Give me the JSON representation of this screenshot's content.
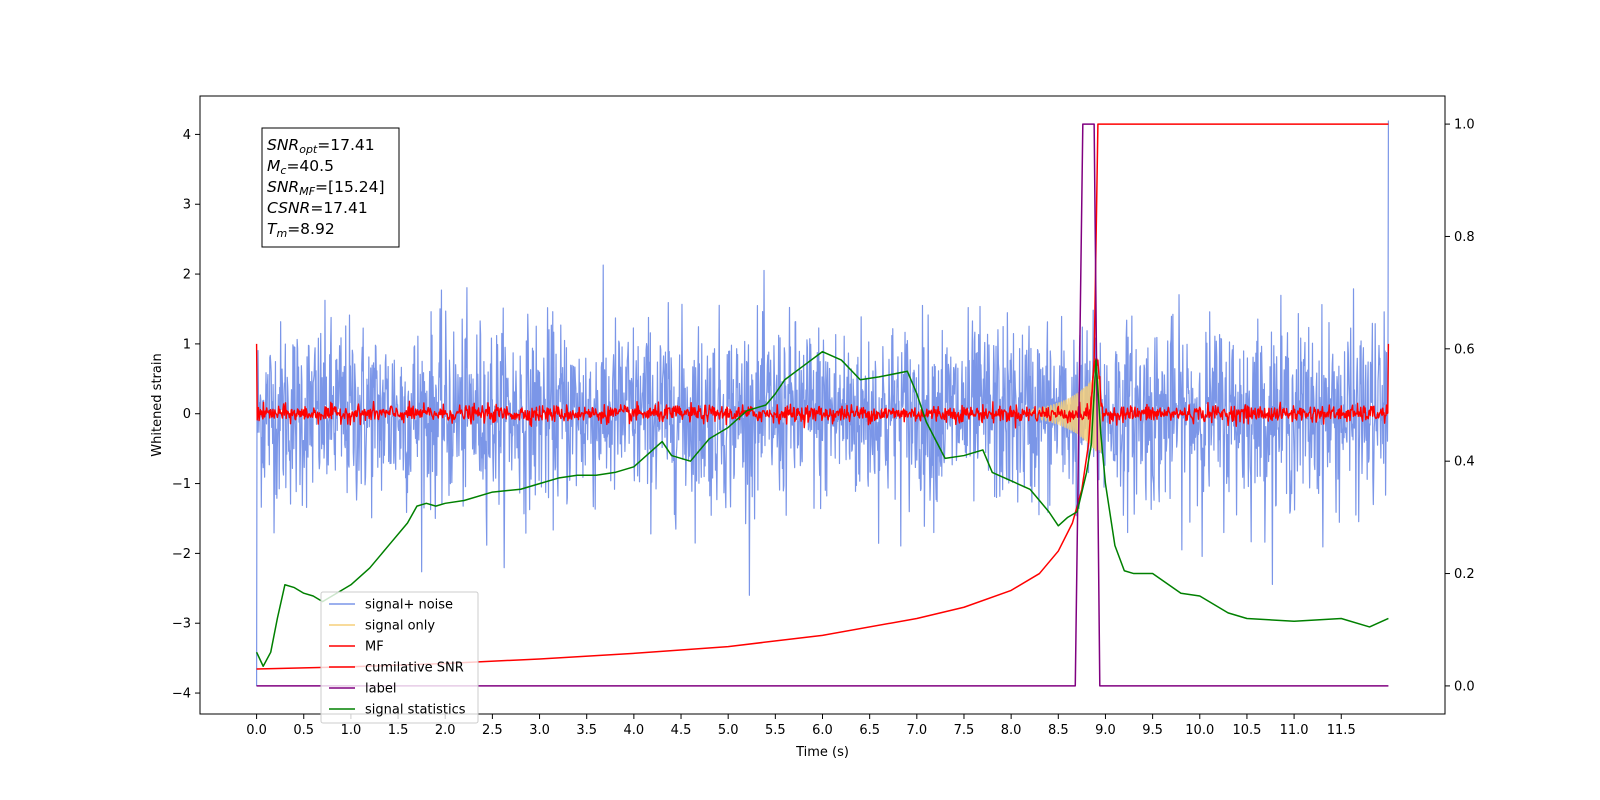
{
  "chart_data": {
    "type": "line",
    "xlabel": "Time (s)",
    "ylabel": "Whitened strain",
    "xlim": [
      -0.6,
      12.6
    ],
    "ylim": [
      -4.3,
      4.55
    ],
    "ylim_right": [
      -0.05,
      1.05
    ],
    "x_ticks": [
      0.0,
      0.5,
      1.0,
      1.5,
      2.0,
      2.5,
      3.0,
      3.5,
      4.0,
      4.5,
      5.0,
      5.5,
      6.0,
      6.5,
      7.0,
      7.5,
      8.0,
      8.5,
      9.0,
      9.5,
      10.0,
      10.5,
      11.0,
      11.5
    ],
    "x_tick_labels": [
      "0.0",
      "0.5",
      "1.0",
      "1.5",
      "2.0",
      "2.5",
      "3.0",
      "3.5",
      "4.0",
      "4.5",
      "5.0",
      "5.5",
      "6.0",
      "6.5",
      "7.0",
      "7.5",
      "8.0",
      "8.5",
      "9.0",
      "9.5",
      "10.0",
      "10.5",
      "11.0",
      "11.5"
    ],
    "y_ticks": [
      -4,
      -3,
      -2,
      -1,
      0,
      1,
      2,
      3,
      4
    ],
    "y_tick_labels": [
      "−4",
      "−3",
      "−2",
      "−1",
      "0",
      "1",
      "2",
      "3",
      "4"
    ],
    "y_right_ticks": [
      0.0,
      0.2,
      0.4,
      0.6,
      0.8,
      1.0
    ],
    "y_right_tick_labels": [
      "0.0",
      "0.2",
      "0.4",
      "0.6",
      "0.8",
      "1.0"
    ],
    "grid": false,
    "legend_placement": "lower-left",
    "annotation": {
      "lines": [
        {
          "base": "SNR",
          "sub": "opt",
          "value": "=17.41"
        },
        {
          "base": "M",
          "sub": "c",
          "value": "=40.5"
        },
        {
          "base": "SNR",
          "sub": "MF",
          "value": "=[15.24]"
        },
        {
          "base": "CSNR",
          "sub": "",
          "value": "=17.41"
        },
        {
          "base": "T",
          "sub": "m",
          "value": "=8.92"
        }
      ]
    },
    "series": [
      {
        "name": "signal+ noise",
        "axis": "left",
        "color": "#7b96e8",
        "kind": "noise",
        "x_range": [
          0.0,
          12.0
        ],
        "amplitude": 0.65,
        "peaks": [
          2.5,
          2.2,
          2.1,
          2.3
        ],
        "spike_end": 4.2
      },
      {
        "name": "signal only",
        "axis": "left",
        "color": "#f5cf7a",
        "kind": "chirp",
        "x_range": [
          8.2,
          8.95
        ],
        "peak_amplitude": 0.65,
        "peak_time": 8.9
      },
      {
        "name": "MF",
        "axis": "left",
        "color": "#ff0000",
        "kind": "mf",
        "x_range": [
          0.0,
          12.0
        ],
        "amplitude": 0.06,
        "edge_values": [
          1.0,
          1.0
        ],
        "peak_time": 8.9,
        "peak_value": 0.8
      },
      {
        "name": "cumilative SNR",
        "axis": "right",
        "color": "#ff0000",
        "x": [
          0.0,
          1.0,
          2.0,
          3.0,
          4.0,
          5.0,
          6.0,
          7.0,
          7.5,
          8.0,
          8.3,
          8.5,
          8.65,
          8.75,
          8.82,
          8.88,
          8.92,
          9.0,
          12.0
        ],
        "y": [
          0.03,
          0.034,
          0.04,
          0.048,
          0.058,
          0.07,
          0.09,
          0.12,
          0.14,
          0.17,
          0.2,
          0.24,
          0.29,
          0.35,
          0.43,
          0.58,
          1.0,
          1.0,
          1.0
        ]
      },
      {
        "name": "label",
        "axis": "right",
        "color": "#800080",
        "x": [
          0.0,
          8.68,
          8.76,
          8.88,
          8.94,
          12.0
        ],
        "y": [
          0.0,
          0.0,
          1.0,
          1.0,
          0.0,
          0.0
        ]
      },
      {
        "name": "signal statistics",
        "axis": "right",
        "color": "#008000",
        "x": [
          0.0,
          0.07,
          0.15,
          0.22,
          0.3,
          0.4,
          0.5,
          0.6,
          0.7,
          0.8,
          1.0,
          1.2,
          1.4,
          1.6,
          1.7,
          1.8,
          1.9,
          2.0,
          2.2,
          2.5,
          2.8,
          3.0,
          3.2,
          3.4,
          3.6,
          3.8,
          4.0,
          4.2,
          4.3,
          4.4,
          4.6,
          4.8,
          5.0,
          5.2,
          5.4,
          5.5,
          5.6,
          5.8,
          6.0,
          6.2,
          6.4,
          6.6,
          6.9,
          7.0,
          7.1,
          7.3,
          7.5,
          7.7,
          7.8,
          8.0,
          8.2,
          8.3,
          8.4,
          8.5,
          8.6,
          8.7,
          8.8,
          8.85,
          8.9,
          8.95,
          9.0,
          9.1,
          9.2,
          9.3,
          9.5,
          9.8,
          10.0,
          10.3,
          10.5,
          11.0,
          11.5,
          11.8,
          12.0
        ],
        "y": [
          0.06,
          0.035,
          0.06,
          0.12,
          0.18,
          0.175,
          0.165,
          0.16,
          0.15,
          0.16,
          0.18,
          0.21,
          0.25,
          0.29,
          0.32,
          0.325,
          0.32,
          0.325,
          0.33,
          0.345,
          0.35,
          0.36,
          0.37,
          0.375,
          0.375,
          0.38,
          0.39,
          0.42,
          0.435,
          0.41,
          0.4,
          0.44,
          0.46,
          0.49,
          0.5,
          0.52,
          0.545,
          0.57,
          0.595,
          0.58,
          0.545,
          0.55,
          0.56,
          0.52,
          0.47,
          0.405,
          0.41,
          0.42,
          0.38,
          0.365,
          0.35,
          0.33,
          0.31,
          0.285,
          0.3,
          0.31,
          0.38,
          0.43,
          0.58,
          0.45,
          0.36,
          0.25,
          0.205,
          0.2,
          0.2,
          0.165,
          0.16,
          0.13,
          0.12,
          0.115,
          0.12,
          0.105,
          0.12
        ]
      }
    ]
  }
}
